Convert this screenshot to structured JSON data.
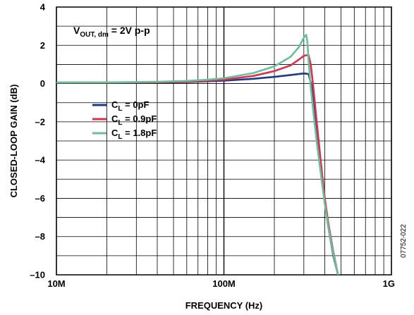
{
  "chart_data": {
    "type": "line",
    "x_scale": "log",
    "xlabel": "FREQUENCY (Hz)",
    "ylabel": "CLOSED-LOOP GAIN (dB)",
    "xlim": [
      10000000,
      1000000000
    ],
    "ylim": [
      -10,
      4
    ],
    "grid": true,
    "x_ticks": [
      {
        "value": 10000000,
        "label": "10M"
      },
      {
        "value": 100000000,
        "label": "100M"
      },
      {
        "value": 1000000000,
        "label": "1G"
      }
    ],
    "y_ticks": [
      {
        "value": 4,
        "label": "4"
      },
      {
        "value": 2,
        "label": "2"
      },
      {
        "value": 0,
        "label": "0"
      },
      {
        "value": -2,
        "label": "–2"
      },
      {
        "value": -4,
        "label": "–4"
      },
      {
        "value": -6,
        "label": "–6"
      },
      {
        "value": -8,
        "label": "–8"
      },
      {
        "value": -10,
        "label": "–10"
      }
    ],
    "annotation": {
      "main": "V",
      "sub": "OUT, dm",
      "rest": " = 2V p-p"
    },
    "figure_id": "07752-022",
    "legend_position": "center-left",
    "series": [
      {
        "label_main": "C",
        "label_sub": "L",
        "label_rest": " = 0pF",
        "color": "#1a3a8c",
        "x": [
          10000000,
          20000000,
          40000000,
          60000000,
          80000000,
          100000000,
          150000000,
          200000000,
          250000000,
          300000000,
          320000000,
          340000000,
          360000000,
          380000000,
          400000000,
          420000000,
          450000000,
          480000000
        ],
        "y": [
          0.05,
          0.05,
          0.06,
          0.08,
          0.12,
          0.15,
          0.25,
          0.35,
          0.45,
          0.53,
          0.5,
          -0.4,
          -2.5,
          -4.5,
          -6.2,
          -7.5,
          -9.0,
          -10.0
        ]
      },
      {
        "label_main": "C",
        "label_sub": "L",
        "label_rest": " = 0.9pF",
        "color": "#d6344e",
        "x": [
          10000000,
          20000000,
          40000000,
          60000000,
          80000000,
          100000000,
          150000000,
          200000000,
          250000000,
          280000000,
          300000000,
          320000000,
          330000000,
          340000000,
          360000000,
          380000000,
          400000000,
          420000000,
          450000000,
          480000000
        ],
        "y": [
          0.05,
          0.05,
          0.07,
          0.1,
          0.15,
          0.2,
          0.4,
          0.65,
          0.95,
          1.25,
          1.45,
          1.5,
          1.0,
          0.0,
          -2.2,
          -4.2,
          -6.0,
          -7.3,
          -8.8,
          -10.0
        ]
      },
      {
        "label_main": "C",
        "label_sub": "L",
        "label_rest": " = 1.8pF",
        "color": "#6bbf9a",
        "x": [
          10000000,
          20000000,
          40000000,
          60000000,
          80000000,
          100000000,
          150000000,
          200000000,
          250000000,
          280000000,
          300000000,
          310000000,
          315000000,
          320000000,
          330000000,
          345000000,
          360000000,
          380000000,
          400000000,
          420000000,
          450000000,
          480000000
        ],
        "y": [
          0.05,
          0.06,
          0.09,
          0.14,
          0.2,
          0.28,
          0.55,
          0.9,
          1.4,
          1.9,
          2.4,
          2.55,
          2.2,
          1.2,
          -0.2,
          -1.8,
          -3.2,
          -4.8,
          -6.3,
          -7.5,
          -8.9,
          -10.0
        ]
      }
    ]
  }
}
